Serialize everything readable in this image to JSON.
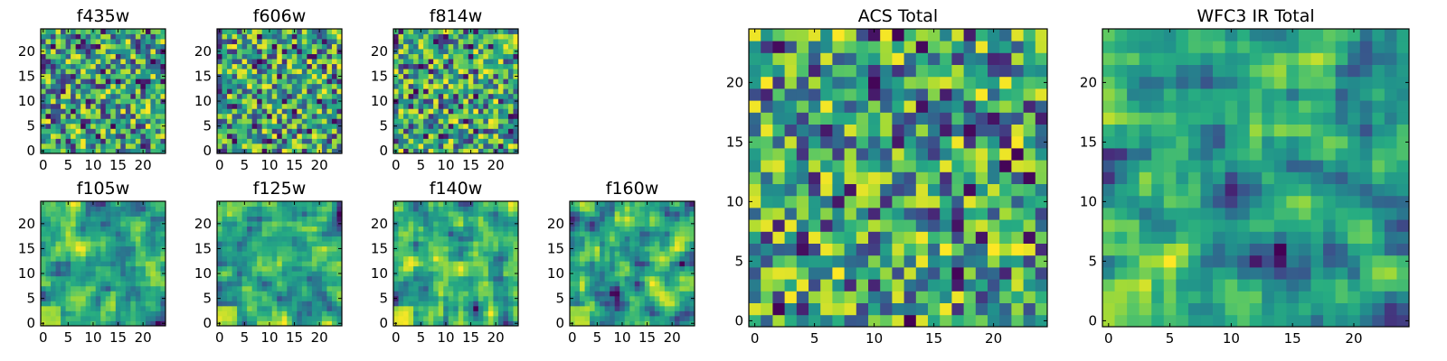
{
  "figure": {
    "colormap": "viridis",
    "colors": {
      "viridis_low": "#440154",
      "viridis_mid": "#21918c",
      "viridis_high": "#fde725",
      "frame": "#000000",
      "background": "#ffffff"
    }
  },
  "chart_data": [
    {
      "type": "heatmap",
      "title": "f435w",
      "colormap": "viridis",
      "grid_size": 25,
      "seed": 11,
      "smoothing": 0,
      "xlim": [
        -0.5,
        24.5
      ],
      "ylim": [
        -0.5,
        24.5
      ],
      "xticks": [
        "0",
        "5",
        "10",
        "15",
        "20"
      ],
      "yticks": [
        "0",
        "5",
        "10",
        "15",
        "20"
      ]
    },
    {
      "type": "heatmap",
      "title": "f606w",
      "colormap": "viridis",
      "grid_size": 25,
      "seed": 23,
      "smoothing": 0,
      "xlim": [
        -0.5,
        24.5
      ],
      "ylim": [
        -0.5,
        24.5
      ],
      "xticks": [
        "0",
        "5",
        "10",
        "15",
        "20"
      ],
      "yticks": [
        "0",
        "5",
        "10",
        "15",
        "20"
      ]
    },
    {
      "type": "heatmap",
      "title": "f814w",
      "colormap": "viridis",
      "grid_size": 25,
      "seed": 37,
      "smoothing": 0,
      "xlim": [
        -0.5,
        24.5
      ],
      "ylim": [
        -0.5,
        24.5
      ],
      "xticks": [
        "0",
        "5",
        "10",
        "15",
        "20"
      ],
      "yticks": [
        "0",
        "5",
        "10",
        "15",
        "20"
      ]
    },
    {
      "type": "heatmap",
      "title": "f105w",
      "colormap": "viridis",
      "grid_size": 25,
      "seed": 41,
      "smoothing": 1,
      "xlim": [
        -0.5,
        24.5
      ],
      "ylim": [
        -0.5,
        24.5
      ],
      "xticks": [
        "0",
        "5",
        "10",
        "15",
        "20"
      ],
      "yticks": [
        "0",
        "5",
        "10",
        "15",
        "20"
      ]
    },
    {
      "type": "heatmap",
      "title": "f125w",
      "colormap": "viridis",
      "grid_size": 25,
      "seed": 53,
      "smoothing": 1,
      "xlim": [
        -0.5,
        24.5
      ],
      "ylim": [
        -0.5,
        24.5
      ],
      "xticks": [
        "0",
        "5",
        "10",
        "15",
        "20"
      ],
      "yticks": [
        "0",
        "5",
        "10",
        "15",
        "20"
      ]
    },
    {
      "type": "heatmap",
      "title": "f140w",
      "colormap": "viridis",
      "grid_size": 25,
      "seed": 67,
      "smoothing": 1,
      "xlim": [
        -0.5,
        24.5
      ],
      "ylim": [
        -0.5,
        24.5
      ],
      "xticks": [
        "0",
        "5",
        "10",
        "15",
        "20"
      ],
      "yticks": [
        "0",
        "5",
        "10",
        "15",
        "20"
      ]
    },
    {
      "type": "heatmap",
      "title": "f160w",
      "colormap": "viridis",
      "grid_size": 25,
      "seed": 79,
      "smoothing": 1,
      "xlim": [
        -0.5,
        24.5
      ],
      "ylim": [
        -0.5,
        24.5
      ],
      "xticks": [
        "0",
        "5",
        "10",
        "15",
        "20"
      ],
      "yticks": [
        "0",
        "5",
        "10",
        "15",
        "20"
      ]
    },
    {
      "type": "heatmap",
      "title": "ACS Total",
      "colormap": "viridis",
      "grid_size": 25,
      "seed": 97,
      "smoothing": 0,
      "xlim": [
        -0.5,
        24.5
      ],
      "ylim": [
        -0.5,
        24.5
      ],
      "xticks": [
        "0",
        "5",
        "10",
        "15",
        "20"
      ],
      "yticks": [
        "0",
        "5",
        "10",
        "15",
        "20"
      ]
    },
    {
      "type": "heatmap",
      "title": "WFC3 IR Total",
      "colormap": "viridis",
      "grid_size": 25,
      "seed": 131,
      "smoothing": 1,
      "xlim": [
        -0.5,
        24.5
      ],
      "ylim": [
        -0.5,
        24.5
      ],
      "xticks": [
        "0",
        "5",
        "10",
        "15",
        "20"
      ],
      "yticks": [
        "0",
        "5",
        "10",
        "15",
        "20"
      ]
    }
  ]
}
